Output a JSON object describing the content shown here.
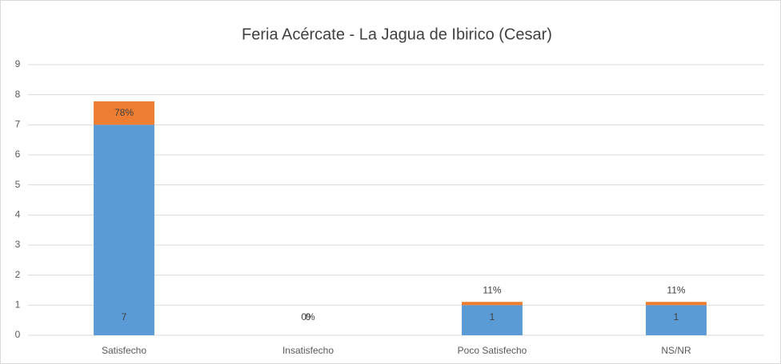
{
  "chart_data": {
    "type": "bar",
    "stacked": true,
    "title": "Feria Acércate - La Jagua de Ibirico (Cesar)",
    "categories": [
      "Satisfecho",
      "Insatisfecho",
      "Poco Satisfecho",
      "NS/NR"
    ],
    "series": [
      {
        "color": "#5b9bd5",
        "values": [
          7,
          0,
          1,
          1
        ]
      },
      {
        "color": "#ed7d31",
        "values": [
          0.78,
          0,
          0.11,
          0.11
        ],
        "value_labels": [
          "78%",
          "0%",
          "11%",
          "11%"
        ]
      }
    ],
    "ylim": [
      0,
      9
    ],
    "yticks": [
      0,
      1,
      2,
      3,
      4,
      5,
      6,
      7,
      8,
      9
    ],
    "grid": true
  }
}
